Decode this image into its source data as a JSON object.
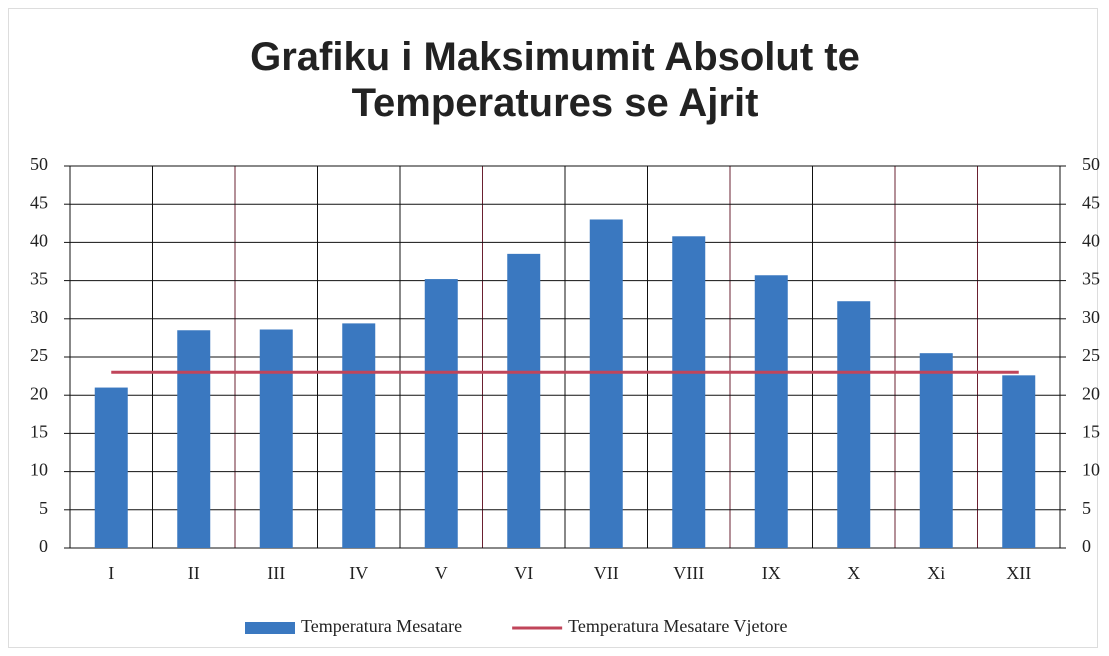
{
  "chart_data": {
    "type": "bar",
    "title": "Grafiku i Maksimumit Absolut te Temperatures se Ajrit",
    "categories": [
      "I",
      "II",
      "III",
      "IV",
      "V",
      "VI",
      "VII",
      "VIII",
      "IX",
      "X",
      "Xi",
      "XII"
    ],
    "series": [
      {
        "name": "Temperatura Mesatare",
        "type": "bar",
        "color": "#3a78c0",
        "values": [
          21,
          28.5,
          28.6,
          29.4,
          35.2,
          38.5,
          43,
          40.8,
          35.7,
          32.3,
          25.5,
          22.6
        ]
      },
      {
        "name": "Temperatura Mesatare Vjetore",
        "type": "line",
        "color": "#c0455a",
        "values": [
          23,
          23,
          23,
          23,
          23,
          23,
          23,
          23,
          23,
          23,
          23,
          23
        ]
      }
    ],
    "ylim": [
      0,
      50
    ],
    "yticks": [
      0,
      5,
      10,
      15,
      20,
      25,
      30,
      35,
      40,
      45,
      50
    ],
    "y2lim": [
      0,
      50
    ],
    "y2ticks": [
      0,
      5,
      10,
      15,
      20,
      25,
      30,
      35,
      40,
      45,
      50
    ],
    "grid": true,
    "legend": "bottom"
  }
}
